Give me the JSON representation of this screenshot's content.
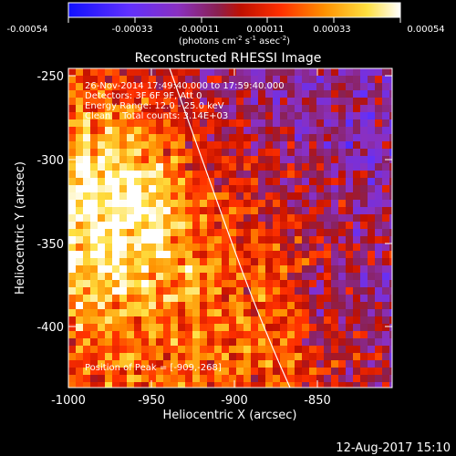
{
  "colorbar": {
    "min_label": "-0.00054",
    "labels": [
      "-0.00054",
      "-0.00033",
      "-0.00011",
      "0.00011",
      "0.00033",
      "0.00054"
    ],
    "units_prefix": "(photons cm",
    "units_exp1": "-2",
    "units_mid": " s",
    "units_exp2": "-1",
    "units_tail": " asec",
    "units_exp3": "-2",
    "units_close": ")"
  },
  "plot": {
    "title": "Reconstructed RHESSI Image",
    "x_label": "Heliocentric X (arcsec)",
    "y_label": "Heliocentric Y (arcsec)",
    "x_ticks": [
      "-1000",
      "-950",
      "-900",
      "-850"
    ],
    "y_ticks": [
      "-250",
      "-300",
      "-350",
      "-400"
    ]
  },
  "info": {
    "line1": "26-Nov-2014 17:49:40.000 to 17:59:40.000",
    "line2": "Detectors: 3F 6F 9F, Att 0",
    "line3": "Energy Range: 12.0 - 25.0 keV",
    "line4": "Clean    Total counts: 3.14E+03",
    "peak": "Position of Peak = [-909,-268]"
  },
  "footer": {
    "date": "12-Aug-2017 15:10"
  },
  "colors": {
    "background": "#000000",
    "text": "#ffffff",
    "limb": "#ffffff"
  }
}
